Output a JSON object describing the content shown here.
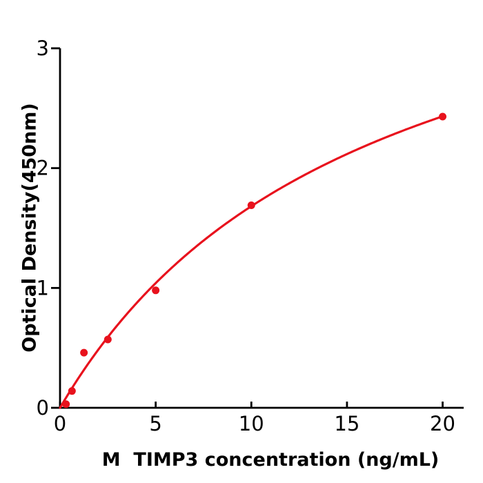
{
  "figure": {
    "background": "#ffffff",
    "axis_color": "#000000",
    "accent_red": "#e8121d"
  },
  "chart_data": {
    "type": "scatter",
    "title": "",
    "xlabel": "M  TIMP3 concentration (ng/mL)",
    "ylabel": "Optical Density(450nm)",
    "xlim": [
      0,
      21.1
    ],
    "ylim": [
      0,
      3
    ],
    "xticks": [
      0,
      5,
      10,
      15,
      20
    ],
    "yticks": [
      0,
      1,
      2,
      3
    ],
    "grid": false,
    "legend": null,
    "series": [
      {
        "name": "standard-points",
        "type": "scatter",
        "color": "#e8121d",
        "marker": "circle",
        "x": [
          0.313,
          0.625,
          1.25,
          2.5,
          5,
          10,
          20
        ],
        "y": [
          0.03,
          0.14,
          0.46,
          0.57,
          0.98,
          1.69,
          2.43
        ]
      },
      {
        "name": "fit-curve",
        "type": "line",
        "color": "#e8121d",
        "model": "michaelis_menten",
        "vmax": 4.39,
        "km": 16.1,
        "x_range": [
          0,
          20
        ]
      }
    ]
  }
}
